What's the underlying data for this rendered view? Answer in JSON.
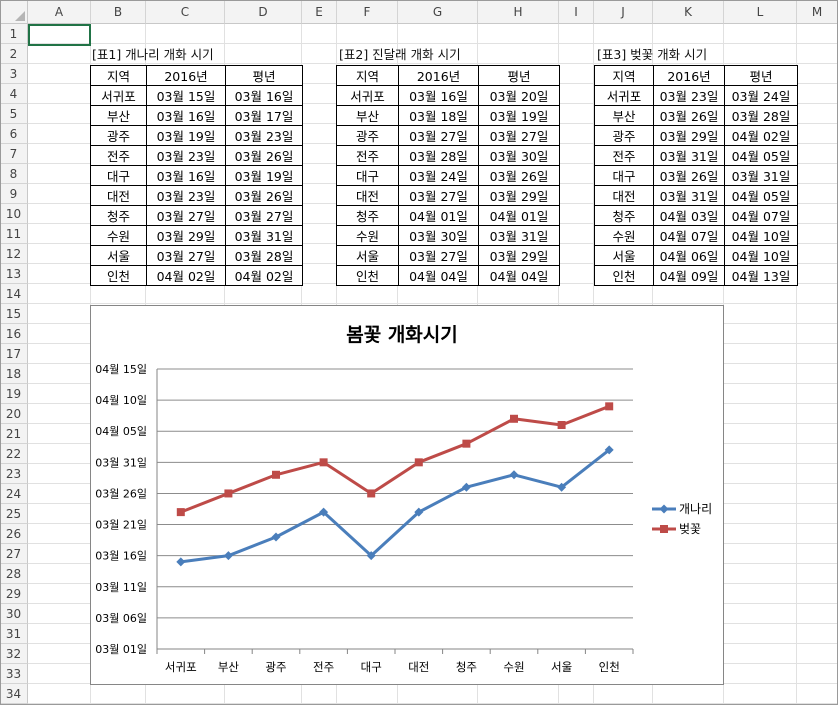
{
  "sheet": {
    "columns": [
      "A",
      "B",
      "C",
      "D",
      "E",
      "F",
      "G",
      "H",
      "I",
      "J",
      "K",
      "L",
      "M"
    ],
    "rows": [
      "1",
      "2",
      "3",
      "4",
      "5",
      "6",
      "7",
      "8",
      "9",
      "10",
      "11",
      "12",
      "13",
      "14",
      "15",
      "16",
      "17",
      "18",
      "19",
      "20",
      "21",
      "22",
      "23",
      "24",
      "25",
      "26",
      "27",
      "28",
      "29",
      "30",
      "31",
      "32",
      "33",
      "34"
    ]
  },
  "tables": [
    {
      "title": "[표1] 개나리 개화 시기",
      "headers": [
        "지역",
        "2016년",
        "평년"
      ],
      "rows": [
        [
          "서귀포",
          "03월 15일",
          "03월 16일"
        ],
        [
          "부산",
          "03월 16일",
          "03월 17일"
        ],
        [
          "광주",
          "03월 19일",
          "03월 23일"
        ],
        [
          "전주",
          "03월 23일",
          "03월 26일"
        ],
        [
          "대구",
          "03월 16일",
          "03월 19일"
        ],
        [
          "대전",
          "03월 23일",
          "03월 26일"
        ],
        [
          "청주",
          "03월 27일",
          "03월 27일"
        ],
        [
          "수원",
          "03월 29일",
          "03월 31일"
        ],
        [
          "서울",
          "03월 27일",
          "03월 28일"
        ],
        [
          "인천",
          "04월 02일",
          "04월 02일"
        ]
      ]
    },
    {
      "title": "[표2] 진달래 개화 시기",
      "headers": [
        "지역",
        "2016년",
        "평년"
      ],
      "rows": [
        [
          "서귀포",
          "03월 16일",
          "03월 20일"
        ],
        [
          "부산",
          "03월 18일",
          "03월 19일"
        ],
        [
          "광주",
          "03월 27일",
          "03월 27일"
        ],
        [
          "전주",
          "03월 28일",
          "03월 30일"
        ],
        [
          "대구",
          "03월 24일",
          "03월 26일"
        ],
        [
          "대전",
          "03월 27일",
          "03월 29일"
        ],
        [
          "청주",
          "04월 01일",
          "04월 01일"
        ],
        [
          "수원",
          "03월 30일",
          "03월 31일"
        ],
        [
          "서울",
          "03월 27일",
          "03월 29일"
        ],
        [
          "인천",
          "04월 04일",
          "04월 04일"
        ]
      ]
    },
    {
      "title": "[표3] 벚꽃 개화 시기",
      "headers": [
        "지역",
        "2016년",
        "평년"
      ],
      "rows": [
        [
          "서귀포",
          "03월 23일",
          "03월 24일"
        ],
        [
          "부산",
          "03월 26일",
          "03월 28일"
        ],
        [
          "광주",
          "03월 29일",
          "04월 02일"
        ],
        [
          "전주",
          "03월 31일",
          "04월 05일"
        ],
        [
          "대구",
          "03월 26일",
          "03월 31일"
        ],
        [
          "대전",
          "03월 31일",
          "04월 05일"
        ],
        [
          "청주",
          "04월 03일",
          "04월 07일"
        ],
        [
          "수원",
          "04월 07일",
          "04월 10일"
        ],
        [
          "서울",
          "04월 06일",
          "04월 10일"
        ],
        [
          "인천",
          "04월 09일",
          "04월 13일"
        ]
      ]
    }
  ],
  "chart_data": {
    "type": "line",
    "title": "봄꽃 개화시기",
    "categories": [
      "서귀포",
      "부산",
      "광주",
      "전주",
      "대구",
      "대전",
      "청주",
      "수원",
      "서울",
      "인천"
    ],
    "series": [
      {
        "name": "개나리",
        "color": "#4a7ebb",
        "marker": "diamond",
        "values": [
          "03월 15일",
          "03월 16일",
          "03월 19일",
          "03월 23일",
          "03월 16일",
          "03월 23일",
          "03월 27일",
          "03월 29일",
          "03월 27일",
          "04월 02일"
        ]
      },
      {
        "name": "벚꽃",
        "color": "#be4b48",
        "marker": "square",
        "values": [
          "03월 23일",
          "03월 26일",
          "03월 29일",
          "03월 31일",
          "03월 26일",
          "03월 31일",
          "04월 03일",
          "04월 07일",
          "04월 06일",
          "04월 09일"
        ]
      }
    ],
    "y_ticks": [
      "03월 01일",
      "03월 06일",
      "03월 11일",
      "03월 16일",
      "03월 21일",
      "03월 26일",
      "03월 31일",
      "04월 05일",
      "04월 10일",
      "04월 15일"
    ],
    "ylim": [
      "03월 01일",
      "04월 15일"
    ],
    "grid": true,
    "legend": "right"
  }
}
